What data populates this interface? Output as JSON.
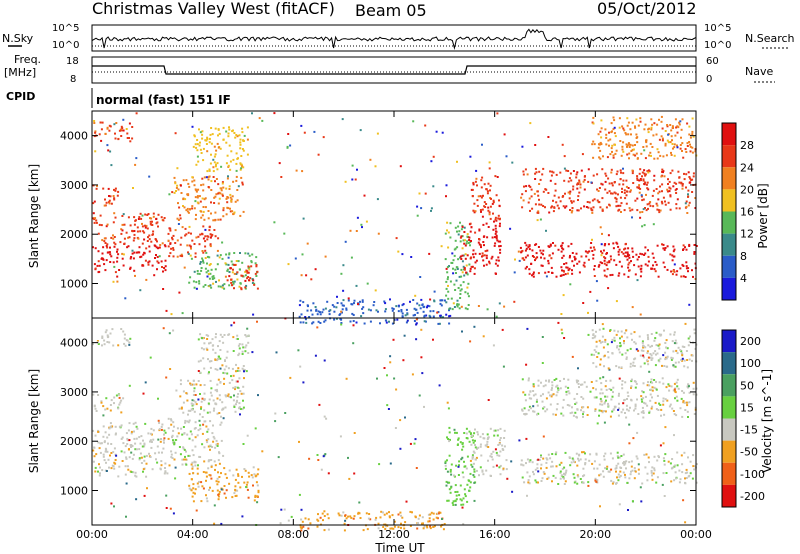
{
  "header": {
    "site": "Christmas Valley West (fitACF)",
    "beam": "Beam 05",
    "date": "05/Oct/2012"
  },
  "strips": {
    "nsky_label": "N.Sky",
    "nsky_ticks": [
      "10^5",
      "10^0"
    ],
    "nsearch_label": "N.Search",
    "nsearch_ticks": [
      "10^5",
      "10^0"
    ],
    "freq_label_1": "Freq.",
    "freq_label_2": "[MHz]",
    "freq_ticks": [
      "18",
      "8"
    ],
    "nave_label": "Nave",
    "nave_ticks": [
      "60",
      "0"
    ],
    "cpid_label": "CPID",
    "cpid_value": "normal (fast) 151 IF"
  },
  "chart_data": [
    {
      "type": "heatmap",
      "name": "power",
      "ylabel": "Slant Range [km]",
      "yticks": [
        "1000",
        "2000",
        "3000",
        "4000"
      ],
      "ylim": [
        300,
        4500
      ],
      "xlim": [
        0,
        24
      ],
      "colorbar_label": "Power [dB]",
      "colorbar_ticks": [
        "4",
        "8",
        "12",
        "16",
        "20",
        "24",
        "28"
      ],
      "colors": [
        "#1a1adc",
        "#2a5cc8",
        "#3a8a8a",
        "#58b858",
        "#f0c020",
        "#f08020",
        "#e83818",
        "#e01010"
      ],
      "regions": [
        {
          "t0": 0.0,
          "t1": 2.9,
          "r0": 1250,
          "r1": 1800,
          "level": 7
        },
        {
          "t0": 0.0,
          "t1": 2.9,
          "r0": 1800,
          "r1": 2450,
          "level": 6
        },
        {
          "t0": 0.0,
          "t1": 1.0,
          "r0": 2600,
          "r1": 3050,
          "level": 6
        },
        {
          "t0": 0.0,
          "t1": 1.6,
          "r0": 3900,
          "r1": 4300,
          "level": 6
        },
        {
          "t0": 3.0,
          "t1": 5.0,
          "r0": 1550,
          "r1": 2200,
          "level": 6
        },
        {
          "t0": 3.2,
          "t1": 6.0,
          "r0": 2300,
          "r1": 3200,
          "level": 5
        },
        {
          "t0": 4.0,
          "t1": 6.2,
          "r0": 3300,
          "r1": 4200,
          "level": 4
        },
        {
          "t0": 3.8,
          "t1": 6.6,
          "r0": 900,
          "r1": 1650,
          "level": 3
        },
        {
          "t0": 5.2,
          "t1": 6.6,
          "r0": 900,
          "r1": 1400,
          "level": 6
        },
        {
          "t0": 8.2,
          "t1": 14.2,
          "r0": 200,
          "r1": 700,
          "level": 1
        },
        {
          "t0": 14.0,
          "t1": 15.0,
          "r0": 500,
          "r1": 2300,
          "level": 3
        },
        {
          "t0": 14.6,
          "t1": 16.2,
          "r0": 1200,
          "r1": 2300,
          "level": 7
        },
        {
          "t0": 15.0,
          "t1": 16.2,
          "r0": 2300,
          "r1": 3200,
          "level": 6
        },
        {
          "t0": 17.0,
          "t1": 24.0,
          "r0": 1150,
          "r1": 1850,
          "level": 7
        },
        {
          "t0": 17.0,
          "t1": 24.0,
          "r0": 2450,
          "r1": 3350,
          "level": 6
        },
        {
          "t0": 19.8,
          "t1": 24.0,
          "r0": 3550,
          "r1": 4400,
          "level": 5
        }
      ]
    },
    {
      "type": "heatmap",
      "name": "velocity",
      "xlabel": "Time UT",
      "ylabel": "Slant Range [km]",
      "xticks": [
        "00:00",
        "04:00",
        "08:00",
        "12:00",
        "16:00",
        "20:00",
        "00:00"
      ],
      "yticks": [
        "1000",
        "2000",
        "3000",
        "4000"
      ],
      "ylim": [
        300,
        4500
      ],
      "xlim": [
        0,
        24
      ],
      "colorbar_label": "Velocity [m s^-1]",
      "colorbar_ticks": [
        "200",
        "100",
        "50",
        "15",
        "-15",
        "-50",
        "-100",
        "-200"
      ],
      "colors": [
        "#1a1ac8",
        "#2a6a8a",
        "#4aa060",
        "#68d040",
        "#c8c8c0",
        "#f0a020",
        "#f06018",
        "#e01010"
      ],
      "regions": [
        {
          "t0": 0.0,
          "t1": 2.9,
          "r0": 1300,
          "r1": 2400,
          "level": 4
        },
        {
          "t0": 0.0,
          "t1": 1.2,
          "r0": 2600,
          "r1": 3000,
          "level": 4
        },
        {
          "t0": 0.0,
          "t1": 1.5,
          "r0": 3950,
          "r1": 4300,
          "level": 4
        },
        {
          "t0": 3.0,
          "t1": 5.2,
          "r0": 1500,
          "r1": 2500,
          "level": 4
        },
        {
          "t0": 3.4,
          "t1": 6.0,
          "r0": 2500,
          "r1": 3300,
          "level": 4
        },
        {
          "t0": 4.2,
          "t1": 6.2,
          "r0": 3300,
          "r1": 4200,
          "level": 4
        },
        {
          "t0": 3.8,
          "t1": 6.6,
          "r0": 800,
          "r1": 1500,
          "level": 5
        },
        {
          "t0": 8.2,
          "t1": 14.0,
          "r0": 200,
          "r1": 600,
          "level": 5
        },
        {
          "t0": 14.0,
          "t1": 15.2,
          "r0": 700,
          "r1": 2300,
          "level": 3
        },
        {
          "t0": 15.0,
          "t1": 16.5,
          "r0": 1300,
          "r1": 2300,
          "level": 4
        },
        {
          "t0": 17.0,
          "t1": 24.0,
          "r0": 1150,
          "r1": 1800,
          "level": 4
        },
        {
          "t0": 17.0,
          "t1": 24.0,
          "r0": 2500,
          "r1": 3300,
          "level": 4
        },
        {
          "t0": 19.8,
          "t1": 24.0,
          "r0": 3500,
          "r1": 4300,
          "level": 4
        }
      ]
    }
  ]
}
